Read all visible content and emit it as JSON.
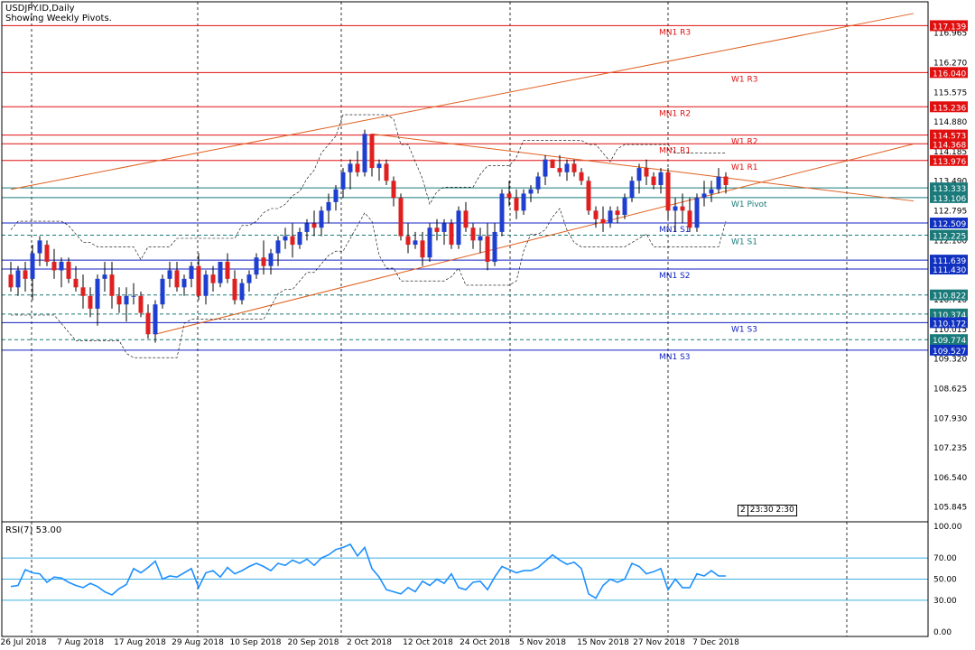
{
  "header": {
    "symbol_line": "USDJPY.ID,Daily",
    "subtitle": "Showing Weekly Pivots."
  },
  "rsi": {
    "label": "RSI(7) 53.00",
    "levels": [
      70.0,
      50.0,
      30.0
    ]
  },
  "clock": {
    "box": "2",
    "time": "23:30 2:30"
  },
  "colors": {
    "bull": "#1f3fd0",
    "bear": "#e02020",
    "resistance": "#e01010",
    "support": "#1020c0",
    "trend": "#e06020",
    "rsi_line": "#1e90ff",
    "rsi_level": "#3cb0e0",
    "label_red_bg": "#e01010",
    "label_blue_bg": "#1030c0",
    "label_teal_bg": "#1a7a7a"
  },
  "chart_data": [
    {
      "type": "candlestick",
      "title": "USDJPY.ID,Daily",
      "subtitle": "Showing Weekly Pivots.",
      "ylim": [
        105.5,
        117.36
      ],
      "y_ticks": [
        "116.965",
        "116.270",
        "115.575",
        "114.880",
        "114.185",
        "113.490",
        "112.795",
        "112.100",
        "111.405",
        "110.710",
        "110.015",
        "109.320",
        "108.625",
        "107.930",
        "107.235",
        "106.540",
        "105.845"
      ],
      "x_ticks": [
        "26 Jul 2018",
        "7 Aug 2018",
        "17 Aug 2018",
        "29 Aug 2018",
        "10 Sep 2018",
        "20 Sep 2018",
        "2 Oct 2018",
        "12 Oct 2018",
        "24 Oct 2018",
        "5 Nov 2018",
        "15 Nov 2018",
        "27 Nov 2018",
        "7 Dec 2018"
      ],
      "candles": [
        [
          111.3,
          111.6,
          110.9,
          111.0
        ],
        [
          111.0,
          111.5,
          110.8,
          111.4
        ],
        [
          111.4,
          111.6,
          110.9,
          111.2
        ],
        [
          111.2,
          112.0,
          110.7,
          111.8
        ],
        [
          111.8,
          112.2,
          111.5,
          112.1
        ],
        [
          112.0,
          112.1,
          111.5,
          111.6
        ],
        [
          111.6,
          111.9,
          111.2,
          111.4
        ],
        [
          111.4,
          111.7,
          111.0,
          111.6
        ],
        [
          111.6,
          111.7,
          111.1,
          111.2
        ],
        [
          111.2,
          111.5,
          110.9,
          111.0
        ],
        [
          111.0,
          111.3,
          110.5,
          110.8
        ],
        [
          110.8,
          111.0,
          110.3,
          110.5
        ],
        [
          110.5,
          111.3,
          110.1,
          111.2
        ],
        [
          111.2,
          111.6,
          110.9,
          111.3
        ],
        [
          111.3,
          111.6,
          110.5,
          110.8
        ],
        [
          110.8,
          111.0,
          110.4,
          110.6
        ],
        [
          110.6,
          111.0,
          110.2,
          110.8
        ],
        [
          110.8,
          111.1,
          110.6,
          110.8
        ],
        [
          110.8,
          110.9,
          110.3,
          110.4
        ],
        [
          110.4,
          110.6,
          109.8,
          109.9
        ],
        [
          109.9,
          110.7,
          109.7,
          110.6
        ],
        [
          110.6,
          111.3,
          110.5,
          111.2
        ],
        [
          111.2,
          111.6,
          111.0,
          111.4
        ],
        [
          111.4,
          111.6,
          110.9,
          111.0
        ],
        [
          111.0,
          111.3,
          110.8,
          111.2
        ],
        [
          111.2,
          111.6,
          111.0,
          111.5
        ],
        [
          111.5,
          111.8,
          110.7,
          110.8
        ],
        [
          110.8,
          111.4,
          110.6,
          111.3
        ],
        [
          111.3,
          111.5,
          110.9,
          111.1
        ],
        [
          111.1,
          111.6,
          111.0,
          111.6
        ],
        [
          111.6,
          111.8,
          111.1,
          111.2
        ],
        [
          111.2,
          111.4,
          110.6,
          110.7
        ],
        [
          110.7,
          111.2,
          110.6,
          111.1
        ],
        [
          111.1,
          111.4,
          110.9,
          111.3
        ],
        [
          111.3,
          111.8,
          111.2,
          111.7
        ],
        [
          111.7,
          112.1,
          111.3,
          111.5
        ],
        [
          111.5,
          111.9,
          111.3,
          111.8
        ],
        [
          111.8,
          112.2,
          111.5,
          112.1
        ],
        [
          112.1,
          112.4,
          111.9,
          112.2
        ],
        [
          112.2,
          112.5,
          111.7,
          112.0
        ],
        [
          112.0,
          112.4,
          111.9,
          112.3
        ],
        [
          112.3,
          112.6,
          112.1,
          112.5
        ],
        [
          112.5,
          112.8,
          112.2,
          112.4
        ],
        [
          112.4,
          112.9,
          112.2,
          112.8
        ],
        [
          112.8,
          113.2,
          112.5,
          113.0
        ],
        [
          113.0,
          113.4,
          112.8,
          113.3
        ],
        [
          113.3,
          113.8,
          113.1,
          113.7
        ],
        [
          113.7,
          114.0,
          113.3,
          113.9
        ],
        [
          113.9,
          114.2,
          113.6,
          113.7
        ],
        [
          113.7,
          114.7,
          113.6,
          114.6
        ],
        [
          114.6,
          114.6,
          113.6,
          113.8
        ],
        [
          113.8,
          114.0,
          113.5,
          113.9
        ],
        [
          113.9,
          114.0,
          113.4,
          113.5
        ],
        [
          113.5,
          113.6,
          112.9,
          113.1
        ],
        [
          113.1,
          113.2,
          112.1,
          112.2
        ],
        [
          112.2,
          112.5,
          111.8,
          112.0
        ],
        [
          112.0,
          112.3,
          111.9,
          112.1
        ],
        [
          112.1,
          112.3,
          111.5,
          111.7
        ],
        [
          111.7,
          112.5,
          111.6,
          112.4
        ],
        [
          112.4,
          112.6,
          112.1,
          112.3
        ],
        [
          112.3,
          112.6,
          112.0,
          112.5
        ],
        [
          112.5,
          112.6,
          111.9,
          112.0
        ],
        [
          112.0,
          112.9,
          111.9,
          112.8
        ],
        [
          112.8,
          113.0,
          112.3,
          112.4
        ],
        [
          112.4,
          112.5,
          111.9,
          112.1
        ],
        [
          112.1,
          112.4,
          111.8,
          112.2
        ],
        [
          112.2,
          112.5,
          111.4,
          111.6
        ],
        [
          111.6,
          112.5,
          111.5,
          112.3
        ],
        [
          112.3,
          113.3,
          112.2,
          113.2
        ],
        [
          113.2,
          113.5,
          112.9,
          113.1
        ],
        [
          113.1,
          113.3,
          112.6,
          112.8
        ],
        [
          112.8,
          113.3,
          112.7,
          113.2
        ],
        [
          113.2,
          113.4,
          113.0,
          113.3
        ],
        [
          113.3,
          113.7,
          113.2,
          113.6
        ],
        [
          113.6,
          114.1,
          113.4,
          114.0
        ],
        [
          114.0,
          114.0,
          113.9,
          113.8
        ],
        [
          113.8,
          114.1,
          113.6,
          113.7
        ],
        [
          113.7,
          114.0,
          113.5,
          113.9
        ],
        [
          113.9,
          114.0,
          113.6,
          113.7
        ],
        [
          113.7,
          113.8,
          113.4,
          113.5
        ],
        [
          113.5,
          113.6,
          112.7,
          112.8
        ],
        [
          112.8,
          112.9,
          112.4,
          112.6
        ],
        [
          112.6,
          112.9,
          112.3,
          112.5
        ],
        [
          112.5,
          112.9,
          112.4,
          112.8
        ],
        [
          112.8,
          112.9,
          112.5,
          112.7
        ],
        [
          112.7,
          113.2,
          112.6,
          113.1
        ],
        [
          113.1,
          113.6,
          113.0,
          113.5
        ],
        [
          113.5,
          113.9,
          113.2,
          113.8
        ],
        [
          113.8,
          114.0,
          113.4,
          113.6
        ],
        [
          113.6,
          113.7,
          113.3,
          113.4
        ],
        [
          113.4,
          113.8,
          113.2,
          113.7
        ],
        [
          113.7,
          113.8,
          112.6,
          112.8
        ],
        [
          112.8,
          113.1,
          112.3,
          112.9
        ],
        [
          112.9,
          113.2,
          112.5,
          112.8
        ],
        [
          112.8,
          113.1,
          112.3,
          112.4
        ],
        [
          112.4,
          113.2,
          112.3,
          113.1
        ],
        [
          113.1,
          113.5,
          112.9,
          113.2
        ],
        [
          113.2,
          113.5,
          113.0,
          113.3
        ],
        [
          113.3,
          113.8,
          113.2,
          113.6
        ],
        [
          113.6,
          113.7,
          113.2,
          113.4
        ]
      ],
      "horizontal_levels": [
        {
          "label": "MN1 R3",
          "value": 117.139,
          "tag": "117.139",
          "kind": "resistance",
          "style": "solid"
        },
        {
          "label": "W1 R3",
          "value": 116.04,
          "tag": "116.040",
          "kind": "resistance",
          "style": "solid"
        },
        {
          "label": "MN1 R2",
          "value": 115.236,
          "tag": "115.236",
          "kind": "resistance",
          "style": "solid"
        },
        {
          "label": "W1 R2",
          "value": 114.573,
          "tag": "114.573",
          "kind": "resistance",
          "style": "solid"
        },
        {
          "label": "MN1 R1",
          "value": 114.368,
          "tag": "114.368",
          "kind": "resistance",
          "style": "solid"
        },
        {
          "label": "W1 R1",
          "value": 113.976,
          "tag": "113.976",
          "kind": "resistance",
          "style": "solid"
        },
        {
          "label": "",
          "value": 113.333,
          "tag": "113.333",
          "kind": "current",
          "style": "solid"
        },
        {
          "label": "W1 Pivot",
          "value": 113.106,
          "tag": "113.106",
          "kind": "pivot",
          "style": "solid"
        },
        {
          "label": "MN1 S1",
          "value": 112.509,
          "tag": "112.509",
          "kind": "support",
          "style": "solid"
        },
        {
          "label": "W1 S1",
          "value": 112.225,
          "tag": "112.225",
          "kind": "pivot",
          "style": "dashed"
        },
        {
          "label": "",
          "value": 111.639,
          "tag": "111.639",
          "kind": "support",
          "style": "solid"
        },
        {
          "label": "MN1 S2",
          "value": 111.43,
          "tag": "111.430",
          "kind": "support",
          "style": "solid"
        },
        {
          "label": "",
          "value": 110.822,
          "tag": "110.822",
          "kind": "pivot",
          "style": "dashed"
        },
        {
          "label": "",
          "value": 110.374,
          "tag": "110.374",
          "kind": "pivot",
          "style": "dashed"
        },
        {
          "label": "W1 S3",
          "value": 110.172,
          "tag": "110.172",
          "kind": "support",
          "style": "solid"
        },
        {
          "label": "",
          "value": 109.774,
          "tag": "109.774",
          "kind": "pivot",
          "style": "dashed"
        },
        {
          "label": "MN1 S3",
          "value": 109.527,
          "tag": "109.527",
          "kind": "support",
          "style": "solid"
        }
      ],
      "trend_lines": [
        {
          "from": [
            0,
            113.3
          ],
          "to": [
            100,
            116.6
          ]
        },
        {
          "from": [
            50,
            114.6
          ],
          "to": [
            100,
            113.55
          ]
        },
        {
          "from": [
            20,
            109.9
          ],
          "to": [
            100,
            113.3
          ]
        }
      ]
    },
    {
      "type": "line",
      "title": "RSI(7) 53.00",
      "ylim": [
        0,
        100
      ],
      "y_ticks": [
        "100.00",
        "70.00",
        "50.00",
        "30.00",
        "0.00"
      ],
      "values": [
        43,
        44,
        59,
        56,
        55,
        47,
        52,
        51,
        47,
        44,
        42,
        46,
        43,
        38,
        35,
        41,
        45,
        60,
        56,
        61,
        67,
        50,
        53,
        52,
        56,
        60,
        42,
        56,
        58,
        52,
        61,
        55,
        58,
        62,
        65,
        62,
        58,
        65,
        63,
        68,
        65,
        69,
        63,
        70,
        73,
        78,
        80,
        83,
        72,
        80,
        60,
        52,
        40,
        38,
        36,
        42,
        38,
        48,
        44,
        50,
        46,
        55,
        42,
        40,
        47,
        48,
        40,
        52,
        62,
        59,
        56,
        58,
        58,
        61,
        67,
        73,
        68,
        64,
        66,
        60,
        36,
        32,
        44,
        50,
        47,
        50,
        65,
        62,
        55,
        57,
        60,
        40,
        50,
        42,
        42,
        55,
        53,
        58,
        53,
        53
      ]
    }
  ]
}
